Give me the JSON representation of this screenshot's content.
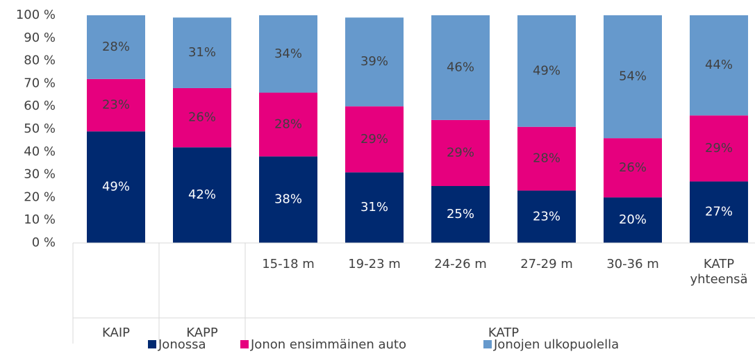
{
  "chart_data": {
    "type": "stacked_bar",
    "categories": [
      null,
      null,
      "15-18 m",
      "19-23 m",
      "24-26 m",
      "27-29 m",
      "30-36 m",
      "KATP yhteensä"
    ],
    "groups": [
      "KAIP",
      "KAPP",
      "KATP",
      "KATP",
      "KATP",
      "KATP",
      "KATP",
      "KATP"
    ],
    "series": [
      {
        "name": "Jonossa",
        "color": "#002970",
        "label_color": "#ffffff",
        "values": [
          49,
          42,
          38,
          31,
          25,
          23,
          20,
          27
        ],
        "value_labels": [
          "49%",
          "42%",
          "38%",
          "31%",
          "25%",
          "23%",
          "20%",
          "27%"
        ]
      },
      {
        "name": "Jonon ensimmäinen auto",
        "color": "#e6007e",
        "label_color": "#404040",
        "values": [
          23,
          26,
          28,
          29,
          29,
          28,
          26,
          29
        ],
        "value_labels": [
          "23%",
          "26%",
          "28%",
          "29%",
          "29%",
          "28%",
          "26%",
          "29%"
        ]
      },
      {
        "name": "Jonojen ulkopuolella",
        "color": "#6699cc",
        "label_color": "#404040",
        "values": [
          28,
          31,
          34,
          39,
          46,
          49,
          54,
          44
        ],
        "value_labels": [
          "28%",
          "31%",
          "34%",
          "39%",
          "46%",
          "49%",
          "54%",
          "44%"
        ]
      }
    ],
    "ylim": [
      0,
      100
    ],
    "yticks": [
      {
        "value": 0,
        "label": "0 %"
      },
      {
        "value": 10,
        "label": "10 %"
      },
      {
        "value": 20,
        "label": "20 %"
      },
      {
        "value": 30,
        "label": "30 %"
      },
      {
        "value": 40,
        "label": "40 %"
      },
      {
        "value": 50,
        "label": "50 %"
      },
      {
        "value": 60,
        "label": "60 %"
      },
      {
        "value": 70,
        "label": "70 %"
      },
      {
        "value": 80,
        "label": "80 %"
      },
      {
        "value": 90,
        "label": "90 %"
      },
      {
        "value": 100,
        "label": "100 %"
      }
    ],
    "legend": "bottom"
  }
}
